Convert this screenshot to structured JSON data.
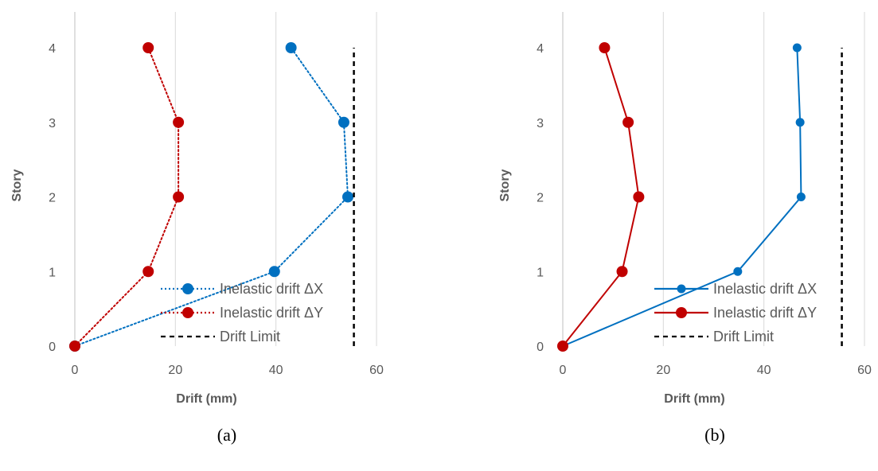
{
  "chart_data": [
    {
      "type": "line",
      "panel": "a",
      "caption": "(a)",
      "xlabel": "Drift (mm)",
      "ylabel": "Story",
      "xlim": [
        0,
        60
      ],
      "ylim": [
        0,
        4
      ],
      "xticks": [
        0,
        20,
        40,
        60
      ],
      "yticks": [
        0,
        1,
        2,
        3,
        4
      ],
      "grid": "vertical",
      "legend_position": "bottom-right",
      "series": [
        {
          "name": "Inelastic drift ΔX",
          "color": "#0070C0",
          "line_style": "dotted",
          "marker_size": "large",
          "points": [
            [
              0,
              0
            ],
            [
              39.7,
              1
            ],
            [
              54.3,
              2
            ],
            [
              53.5,
              3
            ],
            [
              43,
              4
            ]
          ]
        },
        {
          "name": "Inelastic drift ΔY",
          "color": "#C00000",
          "line_style": "dotted",
          "marker_size": "large",
          "points": [
            [
              0,
              0
            ],
            [
              14.6,
              1
            ],
            [
              20.6,
              2
            ],
            [
              20.6,
              3
            ],
            [
              14.6,
              4
            ]
          ]
        },
        {
          "name": "Drift Limit",
          "color": "#000000",
          "line_style": "dashed",
          "marker_size": "none",
          "points": [
            [
              55.5,
              0
            ],
            [
              55.5,
              4
            ]
          ]
        }
      ]
    },
    {
      "type": "line",
      "panel": "b",
      "caption": "(b)",
      "xlabel": "Drift (mm)",
      "ylabel": "Story",
      "xlim": [
        0,
        60
      ],
      "ylim": [
        0,
        4
      ],
      "xticks": [
        0,
        20,
        40,
        60
      ],
      "yticks": [
        0,
        1,
        2,
        3,
        4
      ],
      "grid": "vertical",
      "legend_position": "bottom-right",
      "series": [
        {
          "name": "Inelastic drift ΔX",
          "color": "#0070C0",
          "line_style": "solid",
          "marker_size": "medium",
          "points": [
            [
              0,
              0
            ],
            [
              34.8,
              1
            ],
            [
              47.4,
              2
            ],
            [
              47.2,
              3
            ],
            [
              46.6,
              4
            ]
          ]
        },
        {
          "name": "Inelastic drift ΔY",
          "color": "#C00000",
          "line_style": "solid",
          "marker_size": "large",
          "points": [
            [
              0,
              0
            ],
            [
              11.8,
              1
            ],
            [
              15.1,
              2
            ],
            [
              13,
              3
            ],
            [
              8.3,
              4
            ]
          ]
        },
        {
          "name": "Drift Limit",
          "color": "#000000",
          "line_style": "dashed",
          "marker_size": "none",
          "points": [
            [
              55.5,
              0
            ],
            [
              55.5,
              4
            ]
          ]
        }
      ]
    }
  ]
}
